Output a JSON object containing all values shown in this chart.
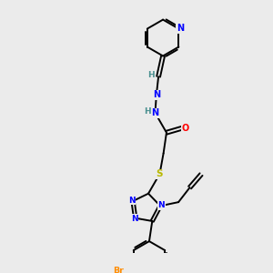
{
  "background_color": "#ebebeb",
  "bond_color": "#000000",
  "atom_colors": {
    "N": "#0000ff",
    "O": "#ff0000",
    "S": "#b8b800",
    "Br": "#ff8c00",
    "H": "#4a9090"
  },
  "figsize": [
    3.0,
    3.0
  ],
  "dpi": 100
}
